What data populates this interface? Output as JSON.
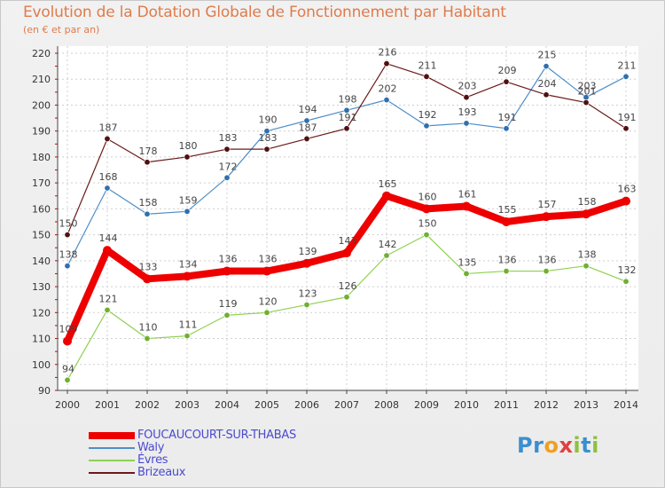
{
  "title": "Evolution de la Dotation Globale de Fonctionnement par Habitant",
  "subtitle": "(en € et par an)",
  "logo_text": "Proxiti",
  "chart_data": {
    "type": "line",
    "title": "Evolution de la Dotation Globale de Fonctionnement par Habitant",
    "subtitle": "(en € et par an)",
    "xlabel": "",
    "ylabel": "",
    "x": [
      "2000",
      "2001",
      "2002",
      "2003",
      "2004",
      "2005",
      "2006",
      "2007",
      "2008",
      "2009",
      "2010",
      "2011",
      "2012",
      "2013",
      "2014"
    ],
    "ylim": [
      90,
      220
    ],
    "yticks": [
      90,
      100,
      110,
      120,
      130,
      140,
      150,
      160,
      170,
      180,
      190,
      200,
      210,
      220
    ],
    "grid": true,
    "legend_position": "bottom-left",
    "series": [
      {
        "name": "FOUCAUCOURT-SUR-THABAS",
        "color": "#ee0000",
        "values": [
          109,
          144,
          133,
          134,
          136,
          136,
          139,
          143,
          165,
          160,
          161,
          155,
          157,
          158,
          163
        ],
        "labels": [
          "109",
          "144",
          "133",
          "134",
          "136",
          "136",
          "139",
          "143",
          "165",
          "160",
          "161",
          "155",
          "157",
          "158",
          "163"
        ]
      },
      {
        "name": "Waly",
        "color": "#4f8fc8",
        "values": [
          138,
          168,
          158,
          159,
          172,
          190,
          194,
          198,
          202,
          192,
          193,
          191,
          215,
          203,
          211
        ],
        "labels": [
          "138",
          "168",
          "158",
          "159",
          "172",
          "190",
          "194",
          "198",
          "202",
          "192",
          "193",
          "191",
          "215",
          "203",
          "211"
        ]
      },
      {
        "name": "Évres",
        "color": "#8fd050",
        "values": [
          94,
          121,
          110,
          111,
          119,
          120,
          123,
          126,
          142,
          150,
          135,
          136,
          136,
          138,
          132
        ],
        "labels": [
          "94",
          "121",
          "110",
          "111",
          "119",
          "120",
          "123",
          "126",
          "142",
          "150",
          "135",
          "136",
          "136",
          "138",
          "132"
        ]
      },
      {
        "name": "Brizeaux",
        "color": "#6b1a1a",
        "values": [
          150,
          187,
          178,
          180,
          183,
          183,
          187,
          191,
          216,
          211,
          203,
          209,
          204,
          201,
          191
        ],
        "labels": [
          "150",
          "187",
          "178",
          "180",
          "183",
          "183",
          "187",
          "191",
          "216",
          "211",
          "203",
          "209",
          "204",
          "201",
          "191"
        ]
      }
    ]
  }
}
